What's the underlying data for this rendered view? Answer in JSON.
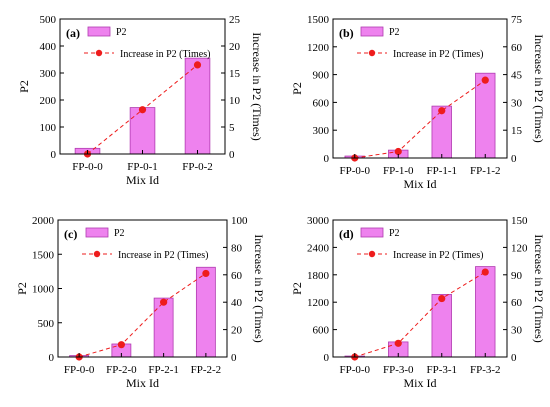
{
  "colors": {
    "bar_fill": "#ee82ee",
    "bar_stroke": "#b03cb0",
    "line": "#ee1c1c",
    "marker": "#ee1c1c",
    "axis": "#000000"
  },
  "chart_data": [
    {
      "type": "bar",
      "panel_label": "(a)",
      "categories": [
        "FP-0-0",
        "FP-0-1",
        "FP-0-2"
      ],
      "xlabel": "Mix Id",
      "ylabel": "P2",
      "ylabel_right": "Increase in P2 (Times)",
      "ylim": [
        0,
        500
      ],
      "yticks": [
        0,
        100,
        200,
        300,
        400,
        500
      ],
      "ylim_right": [
        0,
        25
      ],
      "yticks_right": [
        0,
        5,
        10,
        15,
        20,
        25
      ],
      "legend": [
        "P2",
        "Increase in P2 (Times)"
      ],
      "series": [
        {
          "name": "P2",
          "kind": "bar",
          "axis": "left",
          "values": [
            21,
            172,
            355
          ]
        },
        {
          "name": "Increase in P2 (Times)",
          "kind": "line",
          "axis": "right",
          "values": [
            0,
            8.2,
            16.5
          ]
        }
      ]
    },
    {
      "type": "bar",
      "panel_label": "(b)",
      "categories": [
        "FP-0-0",
        "FP-1-0",
        "FP-1-1",
        "FP-1-2"
      ],
      "xlabel": "Mix Id",
      "ylabel": "P2",
      "ylabel_right": "Increase in P2 (Times)",
      "ylim": [
        0,
        1500
      ],
      "yticks": [
        0,
        300,
        600,
        900,
        1200,
        1500
      ],
      "ylim_right": [
        0,
        75
      ],
      "yticks_right": [
        0,
        15,
        30,
        45,
        60,
        75
      ],
      "legend": [
        "P2",
        "Increase in P2 (Times)"
      ],
      "series": [
        {
          "name": "P2",
          "kind": "bar",
          "axis": "left",
          "values": [
            21,
            85,
            560,
            915
          ]
        },
        {
          "name": "Increase in P2 (Times)",
          "kind": "line",
          "axis": "right",
          "values": [
            0,
            3.5,
            25.5,
            42
          ]
        }
      ]
    },
    {
      "type": "bar",
      "panel_label": "(c)",
      "categories": [
        "FP-0-0",
        "FP-2-0",
        "FP-2-1",
        "FP-2-2"
      ],
      "xlabel": "Mix Id",
      "ylabel": "P2",
      "ylabel_right": "Increase in P2 (Times)",
      "ylim": [
        0,
        2000
      ],
      "yticks": [
        0,
        500,
        1000,
        1500,
        2000
      ],
      "ylim_right": [
        0,
        100
      ],
      "yticks_right": [
        0,
        20,
        40,
        60,
        80,
        100
      ],
      "legend": [
        "P2",
        "Increase in P2 (Times)"
      ],
      "series": [
        {
          "name": "P2",
          "kind": "bar",
          "axis": "left",
          "values": [
            21,
            190,
            860,
            1310
          ]
        },
        {
          "name": "Increase in P2 (Times)",
          "kind": "line",
          "axis": "right",
          "values": [
            0,
            9,
            40,
            61
          ]
        }
      ]
    },
    {
      "type": "bar",
      "panel_label": "(d)",
      "categories": [
        "FP-0-0",
        "FP-3-0",
        "FP-3-1",
        "FP-3-2"
      ],
      "xlabel": "Mix Id",
      "ylabel": "P2",
      "ylabel_right": "Increase in P2 (Times)",
      "ylim": [
        0,
        3000
      ],
      "yticks": [
        0,
        600,
        1200,
        1800,
        2400,
        3000
      ],
      "ylim_right": [
        0,
        150
      ],
      "yticks_right": [
        0,
        30,
        60,
        90,
        120,
        150
      ],
      "legend": [
        "P2",
        "Increase in P2 (Times)"
      ],
      "series": [
        {
          "name": "P2",
          "kind": "bar",
          "axis": "left",
          "values": [
            21,
            330,
            1370,
            1980
          ]
        },
        {
          "name": "Increase in P2 (Times)",
          "kind": "line",
          "axis": "right",
          "values": [
            0,
            15,
            64,
            93
          ]
        }
      ]
    }
  ]
}
